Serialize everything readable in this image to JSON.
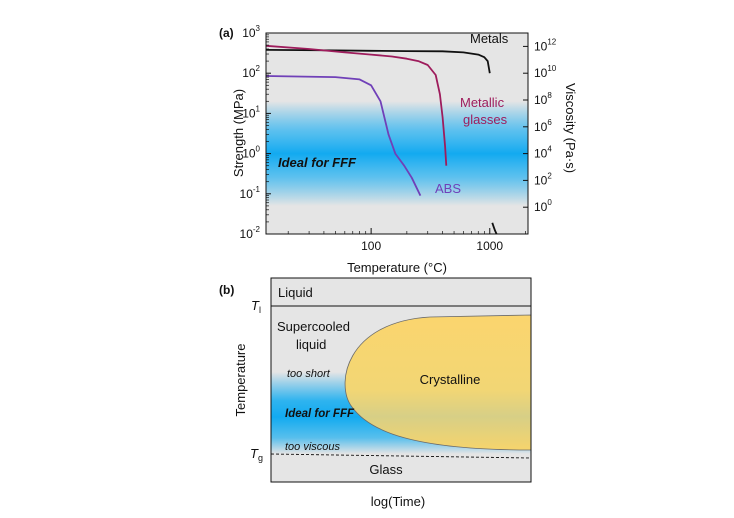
{
  "chart_data": [
    {
      "panel": "(a)",
      "type": "line",
      "xlabel": "Temperature (°C)",
      "ylabel": "Strength (MPa)",
      "y2label": "Viscosity (Pa·s)",
      "x_scale": "log",
      "y_scale": "log",
      "xlim": [
        13,
        2100
      ],
      "ylim": [
        0.01,
        1000
      ],
      "y2lim": [
        0.01,
        10000000000000
      ],
      "x_ticks": [
        {
          "value": 100,
          "label": "100"
        },
        {
          "value": 1000,
          "label": "1000"
        }
      ],
      "y_ticks": [
        {
          "value": 0.01,
          "base": "10",
          "exp": "-2"
        },
        {
          "value": 0.1,
          "base": "10",
          "exp": "-1"
        },
        {
          "value": 1,
          "base": "10",
          "exp": "0"
        },
        {
          "value": 10,
          "base": "10",
          "exp": "1"
        },
        {
          "value": 100,
          "base": "10",
          "exp": "2"
        },
        {
          "value": 1000,
          "base": "10",
          "exp": "3"
        }
      ],
      "y2_ticks": [
        {
          "value": 1,
          "base": "10",
          "exp": "0"
        },
        {
          "value": 100,
          "base": "10",
          "exp": "2"
        },
        {
          "value": 10000,
          "base": "10",
          "exp": "4"
        },
        {
          "value": 1000000,
          "base": "10",
          "exp": "6"
        },
        {
          "value": 100000000,
          "base": "10",
          "exp": "8"
        },
        {
          "value": 10000000000,
          "base": "10",
          "exp": "10"
        },
        {
          "value": 1000000000000,
          "base": "10",
          "exp": "12"
        }
      ],
      "band": {
        "label": "Ideal for FFF",
        "ymin": 0.05,
        "ymax": 20,
        "center": 0.5,
        "color": "#12aaf0"
      },
      "series": [
        {
          "name": "Metals",
          "color": "#111111",
          "x": [
            13,
            50,
            100,
            200,
            400,
            600,
            800,
            900,
            960,
            1000
          ],
          "y": [
            380,
            370,
            360,
            355,
            350,
            330,
            290,
            250,
            200,
            100
          ]
        },
        {
          "name": "",
          "color": "#111111",
          "x": [
            1050,
            1080,
            1110,
            1150
          ],
          "y": [
            0.019,
            0.015,
            0.012,
            0.0095
          ]
        },
        {
          "name": "Metallic glasses",
          "color": "#9e1c5c",
          "x": [
            13,
            30,
            60,
            100,
            150,
            200,
            250,
            300,
            350,
            380,
            400,
            420,
            430
          ],
          "y": [
            480,
            400,
            330,
            290,
            260,
            230,
            200,
            160,
            90,
            30,
            8,
            1.5,
            0.5
          ]
        },
        {
          "name": "ABS",
          "color": "#7040b8",
          "x": [
            13,
            50,
            80,
            100,
            120,
            140,
            160,
            190,
            220,
            260
          ],
          "y": [
            85,
            80,
            70,
            50,
            20,
            3,
            1,
            0.5,
            0.25,
            0.09
          ]
        }
      ]
    },
    {
      "panel": "(b)",
      "type": "diagram",
      "xlabel": "log(Time)",
      "ylabel": "Temperature",
      "tl_label": {
        "main": "T",
        "sub": "l"
      },
      "tg_label": {
        "main": "T",
        "sub": "g"
      },
      "regions": {
        "liquid": "Liquid",
        "supercooled": [
          "Supercooled",
          "liquid"
        ],
        "crystalline": "Crystalline",
        "glass": "Glass",
        "too_short": "too short",
        "ideal": "Ideal for FFF",
        "too_viscous": "too viscous"
      },
      "colors": {
        "crystalline": "#fbd56e",
        "band": "#12aaf0",
        "background": "#e5e5e5"
      }
    }
  ]
}
